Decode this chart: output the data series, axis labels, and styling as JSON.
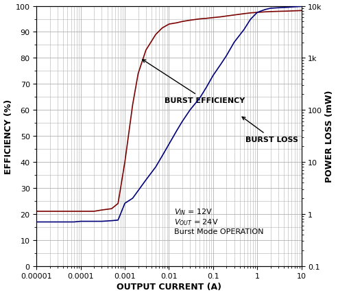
{
  "title": "",
  "xlabel": "OUTPUT CURRENT (A)",
  "ylabel_left": "EFFICIENCY (%)",
  "ylabel_right": "POWER LOSS (mW)",
  "annotation_efficiency": "BURST EFFICIENCY",
  "annotation_loss": "BURST LOSS",
  "xlim": [
    1e-05,
    10
  ],
  "ylim_left": [
    0,
    100
  ],
  "ylim_right": [
    0.1,
    10000
  ],
  "efficiency_color": "#7B0000",
  "loss_color": "#00007B",
  "bg_color": "#ffffff",
  "grid_color": "#b0b0b0",
  "efficiency_x": [
    1e-05,
    2e-05,
    3e-05,
    5e-05,
    7e-05,
    0.0001,
    0.00015,
    0.0002,
    0.0003,
    0.0005,
    0.0007,
    0.001,
    0.0015,
    0.002,
    0.003,
    0.005,
    0.007,
    0.01,
    0.015,
    0.02,
    0.03,
    0.05,
    0.07,
    0.1,
    0.15,
    0.2,
    0.3,
    0.5,
    0.7,
    1.0,
    1.5,
    2.0,
    3.0,
    5.0,
    7.0,
    10.0
  ],
  "efficiency_y": [
    21,
    21,
    21,
    21,
    21,
    21,
    21,
    21,
    21.5,
    22,
    24,
    40,
    62,
    74,
    83,
    89,
    91.5,
    93,
    93.5,
    94,
    94.5,
    95,
    95.2,
    95.5,
    95.8,
    96.1,
    96.5,
    97.0,
    97.3,
    97.5,
    97.7,
    97.8,
    97.9,
    98.0,
    98.1,
    98.2
  ],
  "loss_x": [
    1e-05,
    2e-05,
    3e-05,
    5e-05,
    7e-05,
    0.0001,
    0.00015,
    0.0002,
    0.0003,
    0.0005,
    0.0007,
    0.001,
    0.0015,
    0.002,
    0.003,
    0.005,
    0.007,
    0.01,
    0.015,
    0.02,
    0.03,
    0.05,
    0.07,
    0.1,
    0.15,
    0.2,
    0.3,
    0.5,
    0.7,
    1.0,
    1.5,
    2.0,
    3.0,
    5.0,
    7.0,
    10.0
  ],
  "loss_y": [
    0.7,
    0.7,
    0.7,
    0.7,
    0.7,
    0.72,
    0.72,
    0.72,
    0.72,
    0.74,
    0.76,
    1.6,
    2.0,
    2.8,
    4.5,
    8.0,
    13,
    22,
    40,
    60,
    100,
    170,
    270,
    460,
    760,
    1100,
    2000,
    3500,
    5500,
    7500,
    8500,
    9000,
    9200,
    9400,
    9600,
    9800
  ],
  "xtick_labels": [
    "0.00001",
    "0.0001",
    "0.001",
    "0.01",
    "0.1",
    "1",
    "10"
  ],
  "ytick_left": [
    0,
    10,
    20,
    30,
    40,
    50,
    60,
    70,
    80,
    90,
    100
  ],
  "ytick_right_vals": [
    0.1,
    1,
    10,
    100,
    1000,
    10000
  ],
  "ytick_right_labels": [
    "0.1",
    "1",
    "10",
    "100",
    "1k",
    "10k"
  ]
}
